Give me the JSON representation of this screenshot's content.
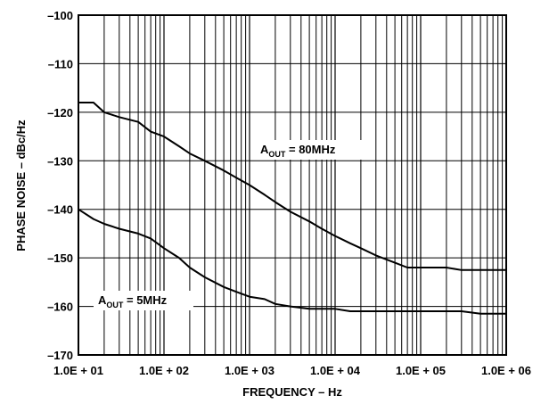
{
  "chart_data": {
    "type": "line",
    "title": "",
    "xlabel": "FREQUENCY – Hz",
    "ylabel": "PHASE NOISE – dBc/Hz",
    "x_scale": "log",
    "xlim": [
      10,
      1000000
    ],
    "ylim": [
      -170,
      -100
    ],
    "x_ticks": [
      10,
      100,
      1000,
      10000,
      100000,
      1000000
    ],
    "x_tick_labels": [
      "1.0E + 01",
      "1.0E + 02",
      "1.0E + 03",
      "1.0E + 04",
      "1.0E + 05",
      "1.0E + 06"
    ],
    "y_ticks": [
      -100,
      -110,
      -120,
      -130,
      -140,
      -150,
      -160,
      -170
    ],
    "y_tick_labels": [
      "–100",
      "–110",
      "–120",
      "–130",
      "–140",
      "–150",
      "–160",
      "–170"
    ],
    "grid": true,
    "legend": "none",
    "annotations": [
      {
        "main": "A",
        "sub": "OUT",
        "rest": " = 80MHz"
      },
      {
        "main": "A",
        "sub": "OUT",
        "rest": " = 5MHz"
      }
    ],
    "series": [
      {
        "color": "#000000",
        "x": [
          10,
          15,
          20,
          30,
          50,
          70,
          100,
          150,
          200,
          300,
          500,
          700,
          1000,
          1500,
          2000,
          3000,
          5000,
          7000,
          10000,
          15000,
          20000,
          30000,
          50000,
          70000,
          100000,
          150000,
          200000,
          300000,
          500000,
          700000,
          1000000
        ],
        "y": [
          -118,
          -118,
          -120,
          -121,
          -122,
          -124,
          -125,
          -127,
          -128.5,
          -130,
          -132,
          -133.5,
          -135,
          -137,
          -138.5,
          -140.5,
          -142.5,
          -144,
          -145.5,
          -147,
          -148,
          -149.5,
          -151,
          -152,
          -152,
          -152,
          -152,
          -152.5,
          -152.5,
          -152.5,
          -152.5
        ]
      },
      {
        "color": "#000000",
        "x": [
          10,
          15,
          20,
          30,
          50,
          70,
          100,
          150,
          200,
          300,
          500,
          700,
          1000,
          1500,
          2000,
          3000,
          5000,
          7000,
          10000,
          15000,
          20000,
          30000,
          50000,
          70000,
          100000,
          150000,
          200000,
          300000,
          500000,
          700000,
          1000000
        ],
        "y": [
          -140,
          -142,
          -143,
          -144,
          -145,
          -146,
          -148,
          -150,
          -152,
          -154,
          -156,
          -157,
          -158,
          -158.5,
          -159.5,
          -160,
          -160.5,
          -160.5,
          -160.5,
          -161,
          -161,
          -161,
          -161,
          -161,
          -161,
          -161,
          -161,
          -161,
          -161.5,
          -161.5,
          -161.5
        ]
      }
    ]
  }
}
